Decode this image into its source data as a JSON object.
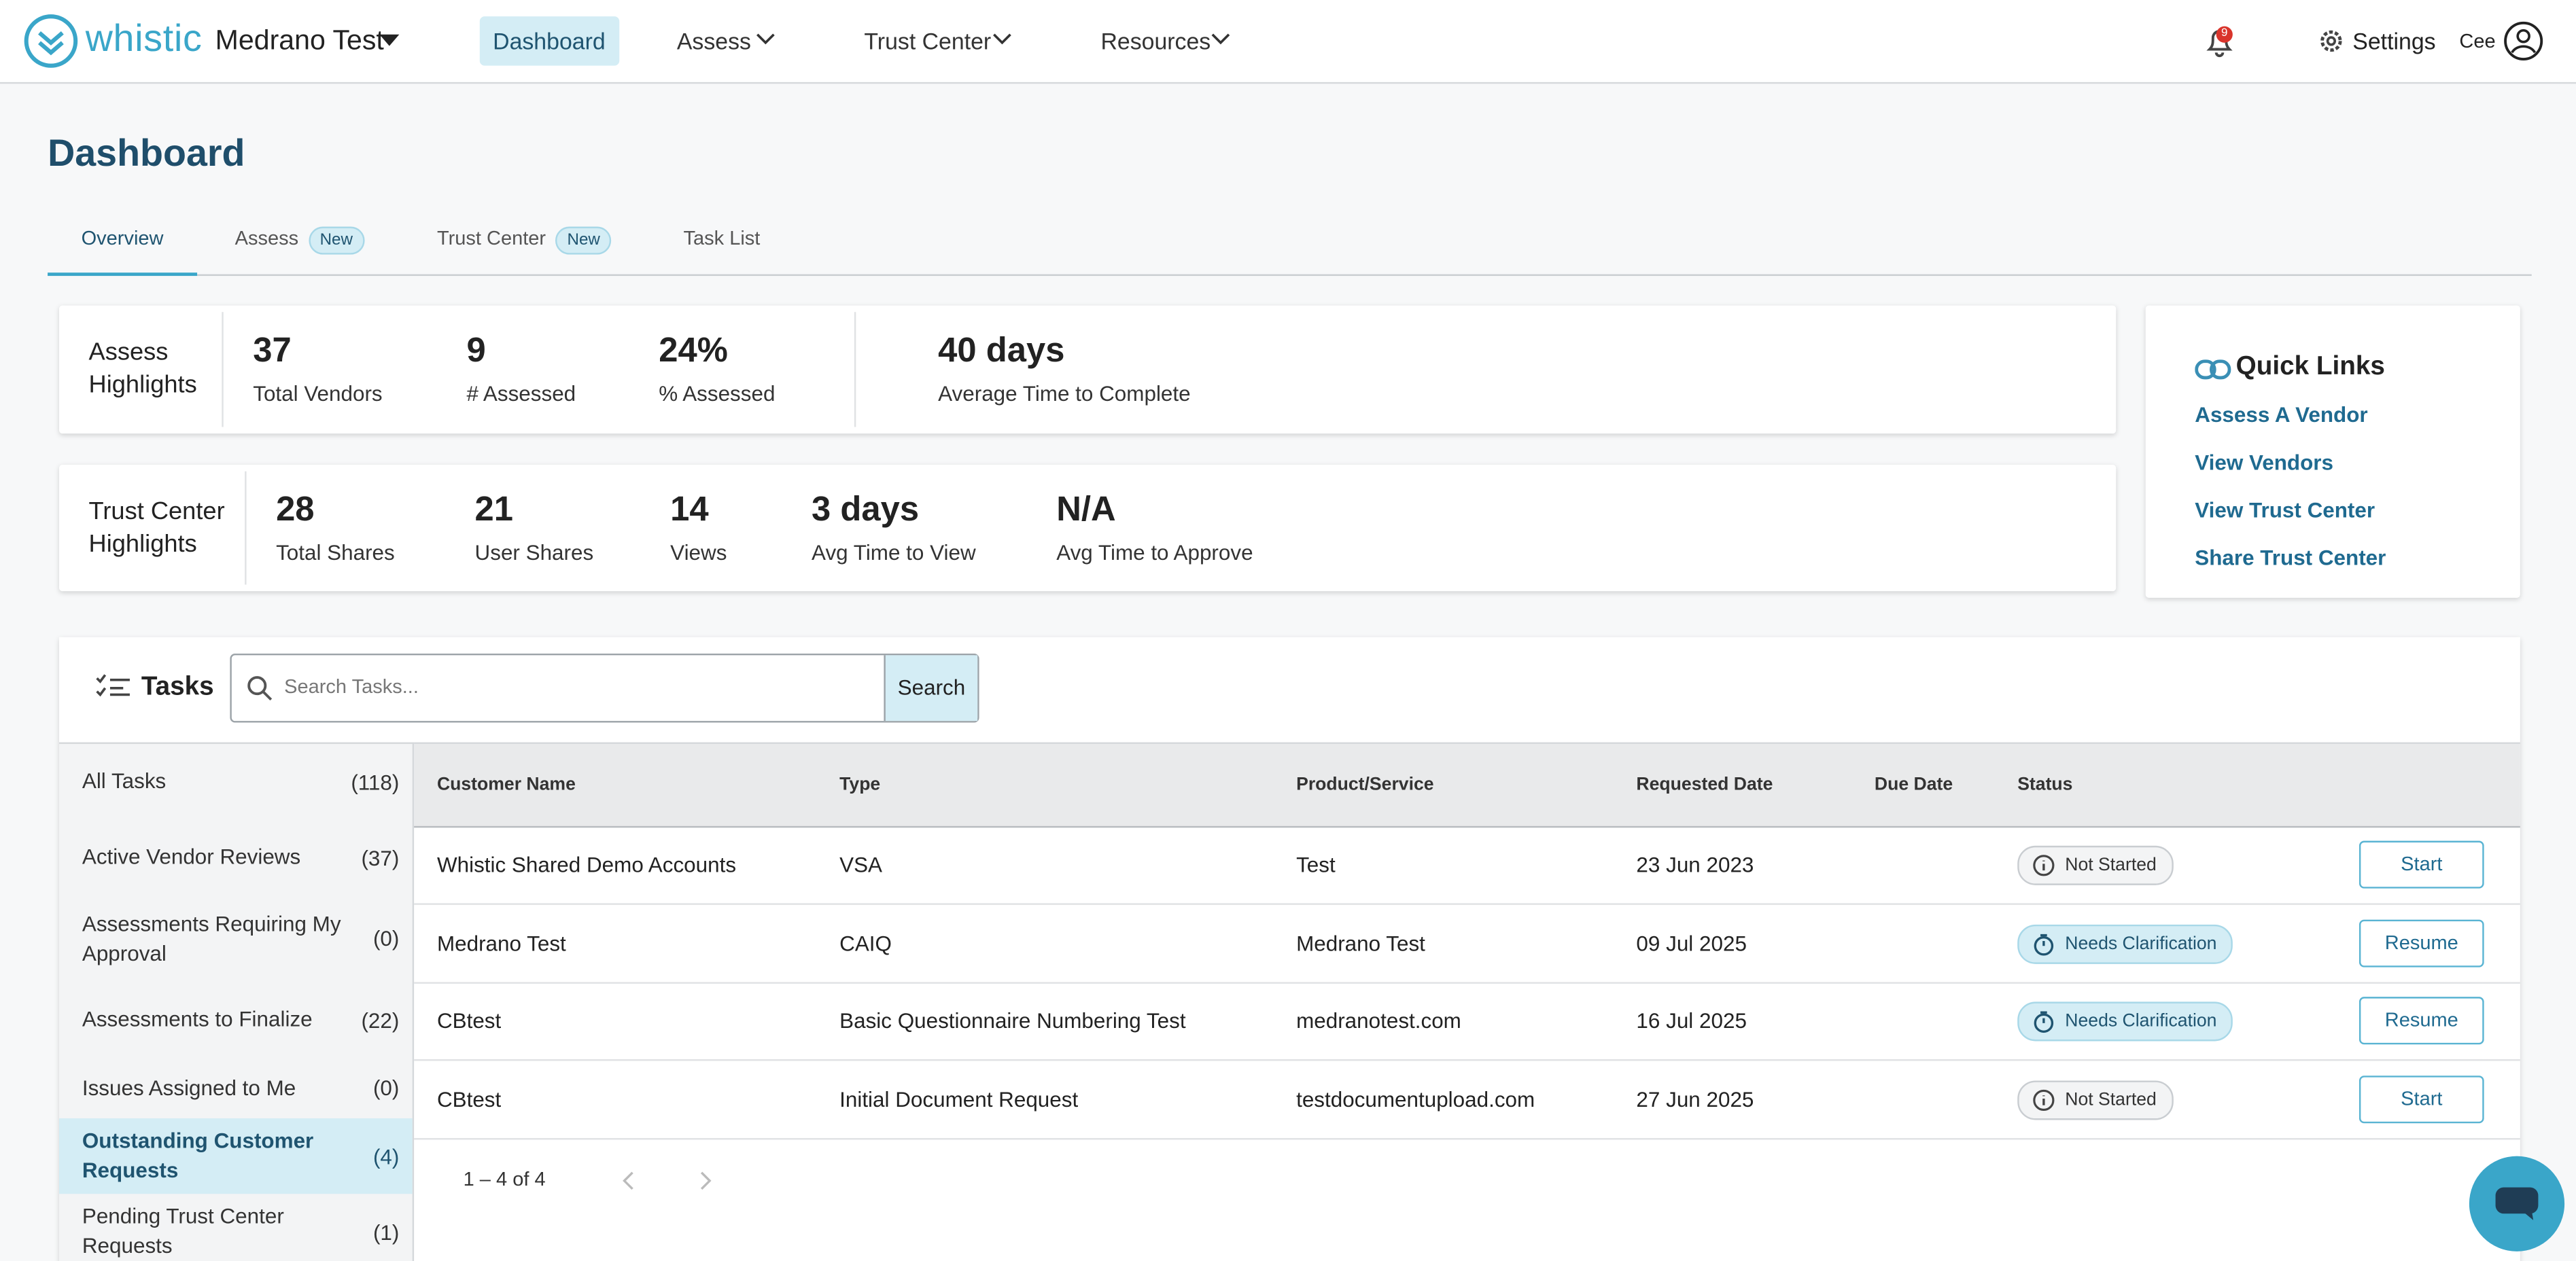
{
  "header": {
    "brand": "whistic",
    "org": "Medrano Test",
    "nav": [
      "Dashboard",
      "Assess",
      "Trust Center",
      "Resources"
    ],
    "notifications": "9",
    "settings": "Settings",
    "user": "Cee"
  },
  "page_title": "Dashboard",
  "tabs": [
    {
      "label": "Overview"
    },
    {
      "label": "Assess",
      "badge": "New"
    },
    {
      "label": "Trust Center",
      "badge": "New"
    },
    {
      "label": "Task List"
    }
  ],
  "assess_highlights": {
    "title": "Assess Highlights",
    "stats": [
      {
        "value": "37",
        "label": "Total Vendors"
      },
      {
        "value": "9",
        "label": "# Assessed"
      },
      {
        "value": "24%",
        "label": "% Assessed"
      },
      {
        "value": "40 days",
        "label": "Average Time to Complete"
      }
    ]
  },
  "trust_center_highlights": {
    "title": "Trust Center Highlights",
    "stats": [
      {
        "value": "28",
        "label": "Total Shares"
      },
      {
        "value": "21",
        "label": "User Shares"
      },
      {
        "value": "14",
        "label": "Views"
      },
      {
        "value": "3 days",
        "label": "Avg Time to View"
      },
      {
        "value": "N/A",
        "label": "Avg Time to Approve"
      }
    ]
  },
  "quick_links": {
    "title": "Quick Links",
    "links": [
      "Assess A Vendor",
      "View Vendors",
      "View Trust Center",
      "Share Trust Center"
    ]
  },
  "tasks": {
    "title": "Tasks",
    "search_placeholder": "Search Tasks...",
    "search_button": "Search",
    "filters": [
      {
        "label": "All Tasks",
        "count": "(118)"
      },
      {
        "label": "Active Vendor Reviews",
        "count": "(37)"
      },
      {
        "label": "Assessments Requiring My Approval",
        "count": "(0)"
      },
      {
        "label": "Assessments to Finalize",
        "count": "(22)"
      },
      {
        "label": "Issues Assigned to Me",
        "count": "(0)"
      },
      {
        "label": "Outstanding Customer Requests",
        "count": "(4)"
      },
      {
        "label": "Pending Trust Center Requests",
        "count": "(1)"
      }
    ],
    "columns": [
      "Customer Name",
      "Type",
      "Product/Service",
      "Requested Date",
      "Due Date",
      "Status"
    ],
    "rows": [
      {
        "customer": "Whistic Shared Demo Accounts",
        "type": "VSA",
        "product": "Test",
        "requested": "23 Jun 2023",
        "status": "Not Started",
        "action": "Start"
      },
      {
        "customer": "Medrano Test",
        "type": "CAIQ",
        "product": "Medrano Test",
        "requested": "09 Jul 2025",
        "status": "Needs Clarification",
        "action": "Resume"
      },
      {
        "customer": "CBtest",
        "type": "Basic Questionnaire Numbering Test",
        "product": "medranotest.com",
        "requested": "16 Jul 2025",
        "status": "Needs Clarification",
        "action": "Resume"
      },
      {
        "customer": "CBtest",
        "type": "Initial Document Request",
        "product": "testdocumentupload.com",
        "requested": "27 Jun 2025",
        "status": "Not Started",
        "action": "Start"
      }
    ],
    "pagination": "1 – 4 of 4"
  }
}
